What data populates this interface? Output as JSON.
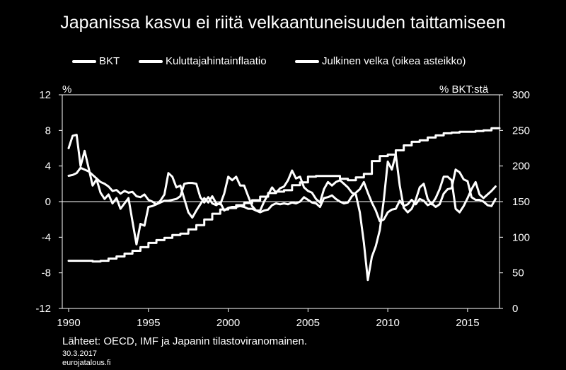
{
  "title": "Japanissa kasvu ei riitä velkaantuneisuuden taittamiseen",
  "left_unit": "%",
  "right_unit": "% BKT:stä",
  "source": "Lähteet: OECD, IMF ja Japanin tilastoviranomainen.",
  "date": "30.3.2017",
  "site": "eurojatalous.fi",
  "chart_data": {
    "type": "line",
    "title": "Japanissa kasvu ei riitä velkaantuneisuuden taittamiseen",
    "xlabel": "",
    "ylabel": "%",
    "y2label": "% BKT:stä",
    "xlim": [
      1989.6,
      2017.0
    ],
    "ylim": [
      -12,
      12
    ],
    "y2lim": [
      0,
      300
    ],
    "x_ticks": [
      1990,
      1995,
      2000,
      2005,
      2010,
      2015
    ],
    "y_ticks": [
      12,
      8,
      4,
      0,
      -4,
      -8,
      -12
    ],
    "y2_ticks": [
      300,
      250,
      200,
      150,
      100,
      50,
      0
    ],
    "grid": false,
    "legend_position": "top",
    "color": "#ffffff",
    "series": [
      {
        "name": "BKT",
        "axis": "left",
        "points": [
          [
            1990.0,
            6.0
          ],
          [
            1990.25,
            7.4
          ],
          [
            1990.5,
            7.5
          ],
          [
            1990.75,
            4.0
          ],
          [
            1991.0,
            5.7
          ],
          [
            1991.25,
            3.8
          ],
          [
            1991.5,
            1.8
          ],
          [
            1991.75,
            2.5
          ],
          [
            1992.0,
            1.0
          ],
          [
            1992.25,
            0.3
          ],
          [
            1992.5,
            0.8
          ],
          [
            1992.75,
            -0.2
          ],
          [
            1993.0,
            0.4
          ],
          [
            1993.25,
            -0.8
          ],
          [
            1993.5,
            -0.2
          ],
          [
            1993.75,
            0.4
          ],
          [
            1994.0,
            -2.2
          ],
          [
            1994.25,
            -4.8
          ],
          [
            1994.5,
            -2.5
          ],
          [
            1994.75,
            -2.7
          ],
          [
            1995.0,
            -0.6
          ],
          [
            1995.25,
            -0.5
          ],
          [
            1995.5,
            -0.3
          ],
          [
            1995.75,
            0.1
          ],
          [
            1996.0,
            0.8
          ],
          [
            1996.25,
            3.2
          ],
          [
            1996.5,
            2.8
          ],
          [
            1996.75,
            1.6
          ],
          [
            1997.0,
            1.8
          ],
          [
            1997.25,
            0.3
          ],
          [
            1997.5,
            -1.2
          ],
          [
            1997.75,
            -1.8
          ],
          [
            1998.0,
            -1.0
          ],
          [
            1998.25,
            -0.3
          ],
          [
            1998.5,
            0.4
          ],
          [
            1998.75,
            -0.1
          ],
          [
            1999.0,
            0.6
          ],
          [
            1999.25,
            -0.2
          ],
          [
            1999.5,
            -0.3
          ],
          [
            1999.75,
            0.9
          ],
          [
            2000.0,
            2.8
          ],
          [
            2000.25,
            2.4
          ],
          [
            2000.5,
            2.8
          ],
          [
            2000.75,
            1.8
          ],
          [
            2001.0,
            1.8
          ],
          [
            2001.25,
            0.6
          ],
          [
            2001.5,
            -0.5
          ],
          [
            2001.75,
            -1.0
          ],
          [
            2002.0,
            -1.0
          ],
          [
            2002.25,
            0.0
          ],
          [
            2002.5,
            0.8
          ],
          [
            2002.75,
            1.6
          ],
          [
            2003.0,
            1.0
          ],
          [
            2003.25,
            1.5
          ],
          [
            2003.5,
            1.7
          ],
          [
            2003.75,
            2.4
          ],
          [
            2004.0,
            3.5
          ],
          [
            2004.25,
            2.6
          ],
          [
            2004.5,
            2.8
          ],
          [
            2004.75,
            1.6
          ],
          [
            2005.0,
            1.2
          ],
          [
            2005.25,
            1.0
          ],
          [
            2005.5,
            0.3
          ],
          [
            2005.75,
            -0.1
          ],
          [
            2006.0,
            1.4
          ],
          [
            2006.25,
            2.2
          ],
          [
            2006.5,
            1.8
          ],
          [
            2006.75,
            2.2
          ],
          [
            2007.0,
            2.4
          ],
          [
            2007.25,
            2.0
          ],
          [
            2007.5,
            1.6
          ],
          [
            2007.75,
            1.0
          ],
          [
            2008.0,
            0.8
          ],
          [
            2008.25,
            -1.2
          ],
          [
            2008.5,
            -4.6
          ],
          [
            2008.75,
            -8.8
          ],
          [
            2009.0,
            -6.2
          ],
          [
            2009.25,
            -5.0
          ],
          [
            2009.5,
            -3.2
          ],
          [
            2009.75,
            0.2
          ],
          [
            2010.0,
            4.5
          ],
          [
            2010.25,
            3.6
          ],
          [
            2010.5,
            5.3
          ],
          [
            2010.75,
            1.8
          ],
          [
            2011.0,
            -0.7
          ],
          [
            2011.25,
            -1.2
          ],
          [
            2011.5,
            -0.8
          ],
          [
            2011.75,
            0.2
          ],
          [
            2012.0,
            1.6
          ],
          [
            2012.25,
            2.0
          ],
          [
            2012.5,
            0.3
          ],
          [
            2012.75,
            -0.3
          ],
          [
            2013.0,
            0.4
          ],
          [
            2013.25,
            1.4
          ],
          [
            2013.5,
            2.8
          ],
          [
            2013.75,
            2.8
          ],
          [
            2014.0,
            2.4
          ],
          [
            2014.25,
            -0.8
          ],
          [
            2014.5,
            -1.2
          ],
          [
            2014.75,
            -0.5
          ],
          [
            2015.0,
            0.4
          ],
          [
            2015.25,
            1.4
          ],
          [
            2015.5,
            2.2
          ],
          [
            2015.75,
            0.8
          ],
          [
            2016.0,
            0.4
          ],
          [
            2016.25,
            0.8
          ],
          [
            2016.5,
            1.2
          ],
          [
            2016.75,
            1.7
          ]
        ]
      },
      {
        "name": "Kuluttajahintainflaatio",
        "axis": "left",
        "points": [
          [
            1990.0,
            2.9
          ],
          [
            1990.25,
            3.0
          ],
          [
            1990.5,
            3.2
          ],
          [
            1990.75,
            3.8
          ],
          [
            1991.0,
            3.6
          ],
          [
            1991.25,
            3.4
          ],
          [
            1991.5,
            3.0
          ],
          [
            1991.75,
            2.6
          ],
          [
            1992.0,
            2.2
          ],
          [
            1992.25,
            2.0
          ],
          [
            1992.5,
            1.7
          ],
          [
            1992.75,
            1.2
          ],
          [
            1993.0,
            1.3
          ],
          [
            1993.25,
            0.9
          ],
          [
            1993.5,
            1.2
          ],
          [
            1993.75,
            1.0
          ],
          [
            1994.0,
            1.1
          ],
          [
            1994.25,
            0.6
          ],
          [
            1994.5,
            0.5
          ],
          [
            1994.75,
            0.8
          ],
          [
            1995.0,
            0.2
          ],
          [
            1995.25,
            0.0
          ],
          [
            1995.5,
            -0.3
          ],
          [
            1995.75,
            -0.1
          ],
          [
            1996.0,
            0.1
          ],
          [
            1996.25,
            0.1
          ],
          [
            1996.5,
            0.2
          ],
          [
            1996.75,
            0.3
          ],
          [
            1997.0,
            0.6
          ],
          [
            1997.25,
            2.0
          ],
          [
            1997.5,
            2.1
          ],
          [
            1997.75,
            2.1
          ],
          [
            1998.0,
            2.0
          ],
          [
            1998.25,
            0.5
          ],
          [
            1998.5,
            -0.1
          ],
          [
            1998.75,
            0.5
          ],
          [
            1999.0,
            -0.2
          ],
          [
            1999.25,
            -0.4
          ],
          [
            1999.5,
            -0.1
          ],
          [
            1999.75,
            -1.0
          ],
          [
            2000.0,
            -0.7
          ],
          [
            2000.25,
            -0.6
          ],
          [
            2000.5,
            -0.6
          ],
          [
            2000.75,
            -0.5
          ],
          [
            2001.0,
            -0.6
          ],
          [
            2001.25,
            -0.8
          ],
          [
            2001.5,
            -0.8
          ],
          [
            2001.75,
            -1.0
          ],
          [
            2002.0,
            -1.2
          ],
          [
            2002.25,
            -1.0
          ],
          [
            2002.5,
            -0.9
          ],
          [
            2002.75,
            -0.4
          ],
          [
            2003.0,
            -0.2
          ],
          [
            2003.25,
            -0.3
          ],
          [
            2003.5,
            -0.2
          ],
          [
            2003.75,
            -0.3
          ],
          [
            2004.0,
            -0.1
          ],
          [
            2004.25,
            -0.2
          ],
          [
            2004.5,
            0.0
          ],
          [
            2004.75,
            0.5
          ],
          [
            2005.0,
            0.2
          ],
          [
            2005.25,
            -0.1
          ],
          [
            2005.5,
            -0.2
          ],
          [
            2005.75,
            -0.6
          ],
          [
            2006.0,
            0.4
          ],
          [
            2006.25,
            0.5
          ],
          [
            2006.5,
            0.7
          ],
          [
            2006.75,
            0.3
          ],
          [
            2007.0,
            0.0
          ],
          [
            2007.25,
            -0.2
          ],
          [
            2007.5,
            -0.1
          ],
          [
            2007.75,
            0.6
          ],
          [
            2008.0,
            1.0
          ],
          [
            2008.25,
            1.4
          ],
          [
            2008.5,
            2.2
          ],
          [
            2008.75,
            1.0
          ],
          [
            2009.0,
            -0.1
          ],
          [
            2009.25,
            -1.0
          ],
          [
            2009.5,
            -2.2
          ],
          [
            2009.75,
            -2.0
          ],
          [
            2010.0,
            -1.2
          ],
          [
            2010.25,
            -0.9
          ],
          [
            2010.5,
            -0.8
          ],
          [
            2010.75,
            0.1
          ],
          [
            2011.0,
            -0.5
          ],
          [
            2011.25,
            -0.3
          ],
          [
            2011.5,
            0.2
          ],
          [
            2011.75,
            -0.3
          ],
          [
            2012.0,
            0.3
          ],
          [
            2012.25,
            0.1
          ],
          [
            2012.5,
            -0.4
          ],
          [
            2012.75,
            -0.2
          ],
          [
            2013.0,
            -0.6
          ],
          [
            2013.25,
            -0.3
          ],
          [
            2013.5,
            0.9
          ],
          [
            2013.75,
            1.4
          ],
          [
            2014.0,
            1.5
          ],
          [
            2014.25,
            3.6
          ],
          [
            2014.5,
            3.3
          ],
          [
            2014.75,
            2.5
          ],
          [
            2015.0,
            2.3
          ],
          [
            2015.25,
            0.5
          ],
          [
            2015.5,
            0.2
          ],
          [
            2015.75,
            0.2
          ],
          [
            2016.0,
            0.0
          ],
          [
            2016.25,
            -0.4
          ],
          [
            2016.5,
            -0.5
          ],
          [
            2016.75,
            0.3
          ]
        ]
      },
      {
        "name": "Julkinen velka (oikea asteikko)",
        "axis": "right",
        "points": [
          [
            1990.0,
            67
          ],
          [
            1990.5,
            67
          ],
          [
            1991.0,
            67
          ],
          [
            1991.5,
            66
          ],
          [
            1992.0,
            67
          ],
          [
            1992.5,
            70
          ],
          [
            1993.0,
            73
          ],
          [
            1993.5,
            77
          ],
          [
            1994.0,
            81
          ],
          [
            1994.5,
            86
          ],
          [
            1995.0,
            92
          ],
          [
            1995.5,
            96
          ],
          [
            1996.0,
            99
          ],
          [
            1996.5,
            103
          ],
          [
            1997.0,
            105
          ],
          [
            1997.5,
            111
          ],
          [
            1998.0,
            117
          ],
          [
            1998.5,
            125
          ],
          [
            1999.0,
            133
          ],
          [
            1999.5,
            139
          ],
          [
            2000.0,
            141
          ],
          [
            2000.5,
            145
          ],
          [
            2001.0,
            148
          ],
          [
            2001.5,
            152
          ],
          [
            2002.0,
            157
          ],
          [
            2002.5,
            162
          ],
          [
            2003.0,
            164
          ],
          [
            2003.5,
            166
          ],
          [
            2004.0,
            173
          ],
          [
            2004.5,
            177
          ],
          [
            2005.0,
            185
          ],
          [
            2005.5,
            186
          ],
          [
            2006.0,
            186
          ],
          [
            2006.5,
            186
          ],
          [
            2007.0,
            182
          ],
          [
            2007.5,
            180
          ],
          [
            2008.0,
            184
          ],
          [
            2008.5,
            189
          ],
          [
            2009.0,
            207
          ],
          [
            2009.5,
            214
          ],
          [
            2010.0,
            216
          ],
          [
            2010.5,
            222
          ],
          [
            2011.0,
            229
          ],
          [
            2011.5,
            234
          ],
          [
            2012.0,
            236
          ],
          [
            2012.5,
            240
          ],
          [
            2013.0,
            243
          ],
          [
            2013.5,
            246
          ],
          [
            2014.0,
            247
          ],
          [
            2014.5,
            248
          ],
          [
            2015.0,
            248
          ],
          [
            2015.5,
            249
          ],
          [
            2016.0,
            250
          ],
          [
            2016.5,
            253
          ],
          [
            2017.0,
            253
          ]
        ]
      }
    ]
  }
}
